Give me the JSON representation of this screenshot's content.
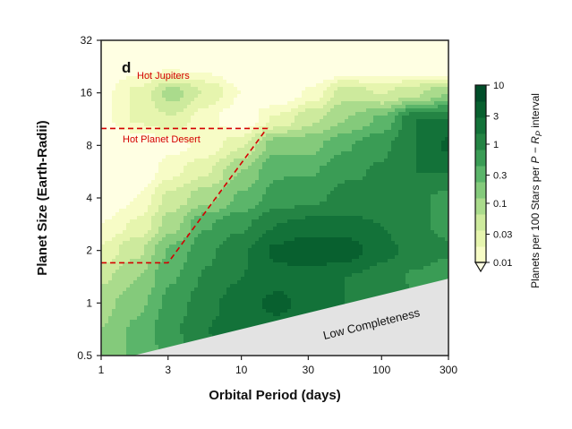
{
  "chart_data": {
    "type": "heatmap",
    "panel_label": "d",
    "xlabel": "Orbital Period (days)",
    "ylabel": "Planet Size (Earth-Radii)",
    "x_scale": "log",
    "y_scale": "log",
    "xlim": [
      1,
      300
    ],
    "ylim": [
      0.5,
      32
    ],
    "xticks": [
      "1",
      "3",
      "10",
      "30",
      "100",
      "300"
    ],
    "xtick_values": [
      1,
      3,
      10,
      30,
      100,
      300
    ],
    "yticks": [
      "0.5",
      "1",
      "2",
      "4",
      "8",
      "16",
      "32"
    ],
    "ytick_values": [
      0.5,
      1,
      2,
      4,
      8,
      16,
      32
    ],
    "grid": false,
    "colorbar": {
      "label_prefix": "Planets per 100 Stars per ",
      "label_p": "P",
      "label_minus": " − ",
      "label_r": "R",
      "label_sub": "P",
      "label_suffix": " interval",
      "ticks": [
        "10",
        "3",
        "1",
        "0.3",
        "0.1",
        "0.03",
        "0.01"
      ],
      "tick_values": [
        10,
        3,
        1,
        0.3,
        0.1,
        0.03,
        0.01
      ],
      "range": [
        0.01,
        10
      ],
      "scale": "log",
      "extend": "min",
      "levels_per_decade": 4,
      "colors": [
        "#ffffe3",
        "#f7fcc6",
        "#e6f5ae",
        "#cdea9d",
        "#aadb8c",
        "#84ca7b",
        "#5bb56a",
        "#3a9c55",
        "#248444",
        "#137239",
        "#08602f",
        "#004d29"
      ],
      "colormap": "YlGn"
    },
    "grid_period_days": [
      1,
      1.8,
      3.2,
      5.6,
      10,
      18,
      32,
      56,
      100,
      178,
      300
    ],
    "grid_radius_earth": [
      32,
      22.6,
      16,
      11.3,
      8,
      5.7,
      4,
      2.8,
      2,
      1.4,
      1,
      0.7,
      0.5
    ],
    "occurrence": [
      [
        0.004,
        0.004,
        0.004,
        0.004,
        0.004,
        0.004,
        0.004,
        0.004,
        0.004,
        0.004,
        0.004
      ],
      [
        0.005,
        0.008,
        0.009,
        0.008,
        0.005,
        0.004,
        0.004,
        0.005,
        0.005,
        0.005,
        0.005
      ],
      [
        0.008,
        0.02,
        0.07,
        0.03,
        0.01,
        0.005,
        0.012,
        0.05,
        0.03,
        0.05,
        0.1
      ],
      [
        0.008,
        0.02,
        0.03,
        0.012,
        0.006,
        0.02,
        0.05,
        0.1,
        0.2,
        1.0,
        1.0
      ],
      [
        0.005,
        0.005,
        0.008,
        0.012,
        0.03,
        0.15,
        0.15,
        0.3,
        0.5,
        1.0,
        2.0
      ],
      [
        0.005,
        0.005,
        0.015,
        0.03,
        0.1,
        0.3,
        0.3,
        0.5,
        0.6,
        1.0,
        1.0
      ],
      [
        0.005,
        0.01,
        0.04,
        0.08,
        0.2,
        0.4,
        0.5,
        0.7,
        0.6,
        0.6,
        0.5
      ],
      [
        0.01,
        0.02,
        0.08,
        0.3,
        0.5,
        1.0,
        1.2,
        1.2,
        1.0,
        0.6,
        0.5
      ],
      [
        0.02,
        0.05,
        0.2,
        0.5,
        0.9,
        2.0,
        3.0,
        2.5,
        1.2,
        0.8,
        0.6
      ],
      [
        0.05,
        0.1,
        0.3,
        0.6,
        1.0,
        1.5,
        1.3,
        1.0,
        0.8,
        0.5,
        0.4
      ],
      [
        0.08,
        0.15,
        0.4,
        0.8,
        1.5,
        2.0,
        1.5,
        1.0,
        0.8,
        0.6,
        0.5
      ],
      [
        0.1,
        0.2,
        0.5,
        1.0,
        1.5,
        1.5,
        1.2,
        1.0,
        0.8,
        0.6,
        0.5
      ],
      [
        0.1,
        0.2,
        0.4,
        0.8,
        1.2,
        1.2,
        1.0,
        0.8,
        0.7,
        0.5,
        0.4
      ]
    ],
    "annotations": {
      "hot_jupiters": "Hot Jupiters",
      "hot_planet_desert": "Hot Planet Desert",
      "low_completeness": "Low Completeness",
      "annotation_color": "#d40000"
    },
    "desert_boundary": {
      "period_days": [
        1,
        15.2,
        3.0,
        1
      ],
      "radius_earth": [
        10,
        10,
        1.7,
        1.7
      ]
    },
    "low_completeness_region": {
      "period_days": [
        1.7,
        300,
        300
      ],
      "radius_earth": [
        0.5,
        1.38,
        0.5
      ],
      "color": "#e3e3e3"
    }
  }
}
